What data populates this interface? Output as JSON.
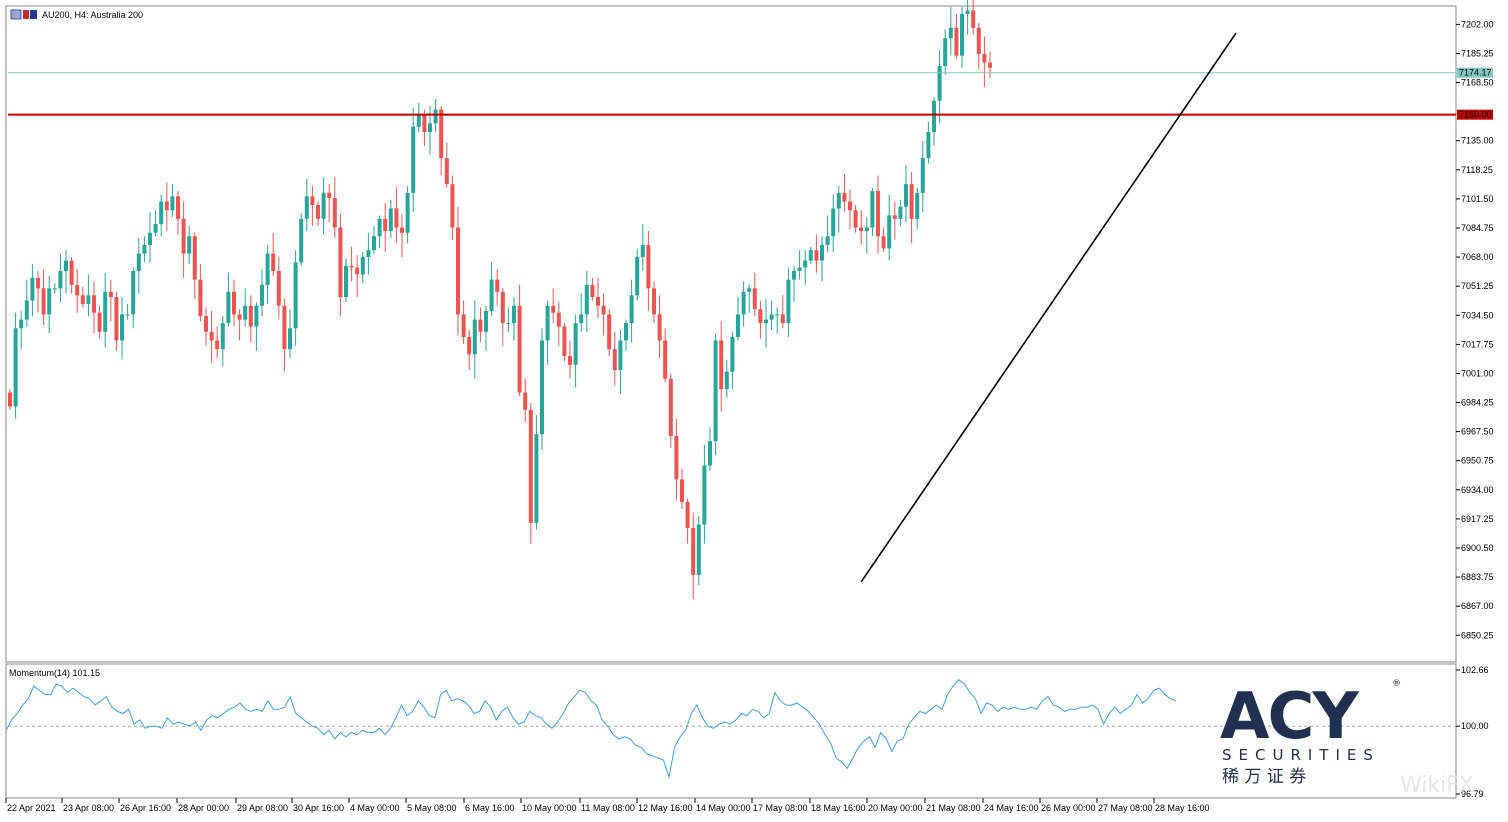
{
  "header": {
    "title": "AU200, H4:  Australia 200"
  },
  "colors": {
    "bull": "#26a69a",
    "bear": "#ef5350",
    "resistance": "#c00000",
    "bid_line": "#7fc8c0",
    "momentum": "#3aa0e8",
    "trendline": "#000000",
    "brand": "#1f3050"
  },
  "chart_data": [
    {
      "type": "candlestick",
      "title": "AU200, H4:  Australia 200",
      "ylim": [
        6836,
        7212
      ],
      "y_ticks": [
        "7202.00",
        "7185.25",
        "7168.50",
        "7135.00",
        "7118.25",
        "7101.50",
        "7084.75",
        "7068.00",
        "7051.25",
        "7034.50",
        "7017.75",
        "7001.00",
        "6984.25",
        "6967.50",
        "6950.75",
        "6934.00",
        "6917.25",
        "6900.50",
        "6883.75",
        "6867.00",
        "6850.25"
      ],
      "x_tick_labels": [
        "22 Apr 2021",
        "23 Apr 08:00",
        "26 Apr 16:00",
        "28 Apr 00:00",
        "29 Apr 08:00",
        "30 Apr 16:00",
        "4 May 00:00",
        "5 May 08:00",
        "6 May 16:00",
        "10 May 00:00",
        "11 May 08:00",
        "12 May 16:00",
        "14 May 00:00",
        "17 May 08:00",
        "18 May 16:00",
        "20 May 00:00",
        "21 May 08:00",
        "24 May 16:00",
        "26 May 00:00",
        "27 May 08:00",
        "28 May 16:00"
      ],
      "price_labels": {
        "current": "7174.17",
        "resistance": "7150.00"
      },
      "horizontal_lines": [
        {
          "value": 7174.17,
          "kind": "bid"
        },
        {
          "value": 7150.0,
          "kind": "resistance"
        }
      ],
      "trendline": [
        [
          6881,
          6881
        ],
        [
          7197,
          7197
        ]
      ],
      "close": [
        6982,
        7027,
        7032,
        7043,
        7056,
        7050,
        7035,
        7050,
        7050,
        7060,
        7066,
        7052,
        7046,
        7041,
        7046,
        7036,
        7025,
        7048,
        7045,
        7020,
        7035,
        7035,
        7060,
        7070,
        7075,
        7082,
        7087,
        7100,
        7095,
        7103,
        7090,
        7070,
        7080,
        7055,
        7034,
        7025,
        7020,
        7015,
        7030,
        7048,
        7035,
        7032,
        7040,
        7028,
        7040,
        7052,
        7070,
        7060,
        7040,
        7015,
        7027,
        7065,
        7090,
        7103,
        7098,
        7090,
        7105,
        7102,
        7085,
        7045,
        7063,
        7062,
        7058,
        7068,
        7072,
        7080,
        7090,
        7083,
        7096,
        7085,
        7082,
        7105,
        7143,
        7150,
        7140,
        7145,
        7153,
        7125,
        7110,
        7085,
        7035,
        7022,
        7012,
        7032,
        7025,
        7037,
        7055,
        7048,
        7030,
        7030,
        7040,
        6990,
        6980,
        6915,
        6966,
        7020,
        7040,
        7036,
        7028,
        7011,
        7006,
        7030,
        7035,
        7052,
        7045,
        7040,
        7035,
        7015,
        7003,
        7020,
        7030,
        7046,
        7068,
        7075,
        7050,
        7035,
        7020,
        6998,
        6965,
        6940,
        6927,
        6912,
        6885,
        6914,
        6948,
        6962,
        7020,
        6992,
        7002,
        7022,
        7035,
        7048,
        7050,
        7038,
        7030,
        7032,
        7035,
        7035,
        7030,
        7055,
        7060,
        7062,
        7066,
        7072,
        7066,
        7075,
        7080,
        7096,
        7105,
        7100,
        7095,
        7085,
        7083,
        7085,
        7106,
        7080,
        7073,
        7092,
        7090,
        7097,
        7110,
        7090,
        7105,
        7125,
        7140,
        7158,
        7178,
        7194,
        7200,
        7184,
        7208,
        7210,
        7200,
        7185,
        7180,
        7177
      ]
    },
    {
      "type": "line",
      "title": "Momentum(14) 101.15",
      "ylim": [
        96.79,
        102.66
      ],
      "y_ticks": [
        "102.66",
        "100.00",
        "96.79"
      ],
      "reference_line": 100.0,
      "values": [
        99.8,
        100.3,
        100.6,
        101.0,
        101.3,
        101.9,
        101.7,
        101.5,
        101.5,
        102.0,
        101.9,
        101.6,
        101.8,
        101.6,
        101.4,
        101.3,
        101.0,
        101.2,
        101.4,
        100.9,
        100.7,
        100.6,
        100.8,
        100.1,
        100.3,
        99.9,
        100.0,
        100.0,
        99.9,
        100.4,
        100.1,
        100.2,
        100.1,
        100.0,
        100.2,
        99.8,
        100.3,
        100.5,
        100.4,
        100.6,
        100.8,
        100.9,
        101.1,
        100.8,
        100.7,
        100.8,
        100.7,
        101.2,
        100.8,
        100.8,
        100.9,
        101.4,
        100.6,
        100.4,
        100.2,
        100.0,
        99.9,
        99.6,
        99.8,
        99.4,
        99.7,
        99.5,
        99.7,
        99.6,
        99.8,
        99.7,
        99.7,
        99.9,
        99.6,
        99.9,
        100.4,
        101.0,
        100.5,
        100.7,
        101.2,
        100.9,
        100.5,
        100.4,
        101.5,
        101.7,
        101.2,
        101.3,
        101.2,
        101.0,
        100.6,
        100.7,
        101.2,
        100.9,
        100.3,
        100.7,
        100.9,
        100.4,
        100.1,
        100.2,
        100.7,
        100.5,
        100.4,
        100.1,
        99.9,
        100.2,
        100.6,
        101.1,
        101.4,
        101.7,
        101.6,
        101.2,
        101.0,
        100.3,
        100.0,
        99.6,
        99.4,
        99.5,
        99.4,
        99.1,
        99.0,
        98.7,
        98.6,
        98.5,
        98.4,
        97.6,
        99.0,
        99.5,
        99.8,
        100.6,
        101.0,
        100.4,
        100.0,
        99.9,
        100.1,
        100.2,
        100.1,
        100.3,
        100.6,
        100.5,
        100.8,
        100.7,
        100.4,
        100.6,
        101.6,
        101.2,
        101.0,
        101.0,
        101.1,
        100.9,
        100.7,
        100.4,
        100.1,
        99.6,
        99.2,
        98.5,
        98.3,
        98.0,
        98.5,
        99.0,
        99.3,
        99.5,
        99.0,
        99.7,
        99.4,
        98.8,
        99.3,
        99.4,
        100.1,
        100.4,
        100.7,
        100.6,
        100.8,
        101.0,
        100.8,
        101.5,
        101.9,
        102.2,
        102.0,
        101.6,
        101.3,
        100.6,
        101.1,
        101.0,
        100.7,
        100.9,
        100.8,
        100.9,
        100.8,
        100.8,
        100.9,
        100.8,
        101.2,
        101.4,
        101.0,
        100.9,
        100.7,
        100.8,
        100.8,
        100.9,
        100.9,
        101.0,
        100.8,
        100.1,
        100.6,
        100.9,
        100.6,
        100.8,
        101.0,
        101.5,
        101.1,
        101.3,
        101.7,
        101.8,
        101.5,
        101.3,
        101.2
      ]
    }
  ],
  "logo": {
    "text": "ACY",
    "registered": "®",
    "subtitle": "SECURITIES",
    "chinese": "稀 万 证 券"
  },
  "watermark": "WikiFX"
}
